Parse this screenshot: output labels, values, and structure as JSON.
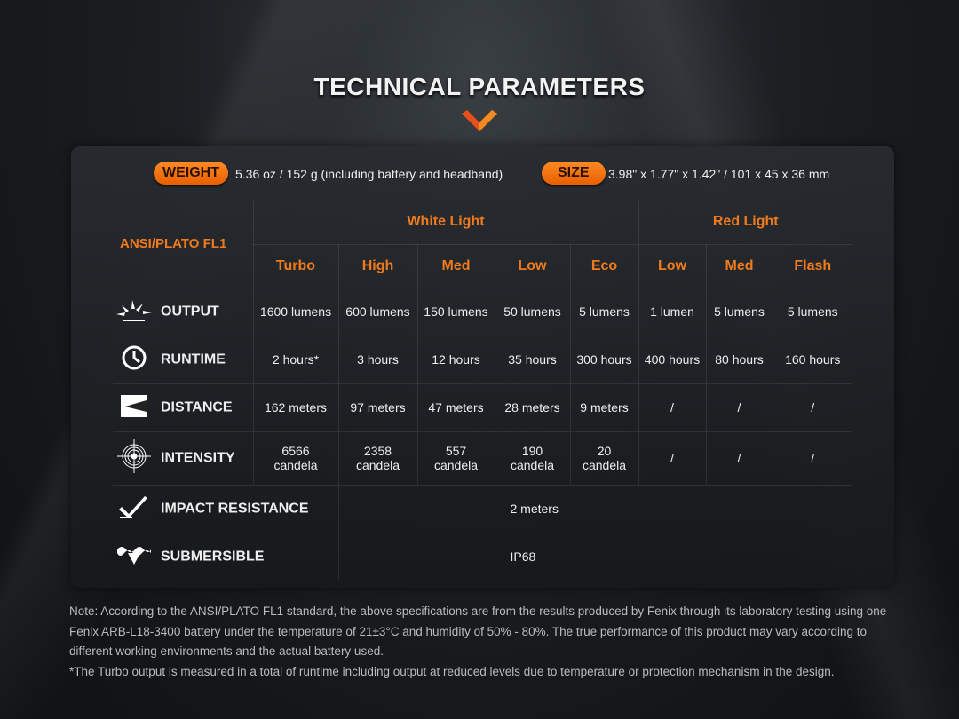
{
  "title": "TECHNICAL PARAMETERS",
  "colors": {
    "accent": "#f07a1c",
    "pill": "#ff7a14"
  },
  "weight": {
    "label": "WEIGHT",
    "value": "5.36 oz / 152 g (including battery and headband)"
  },
  "size": {
    "label": "SIZE",
    "value": "3.98\" x 1.77\" x 1.42\" / 101 x 45 x 36 mm"
  },
  "table": {
    "standard": "ANSI/PLATO FL1",
    "groups": [
      "White Light",
      "Red Light"
    ],
    "modes": [
      "Turbo",
      "High",
      "Med",
      "Low",
      "Eco",
      "Low",
      "Med",
      "Flash"
    ],
    "rows": [
      {
        "icon": "sun-burst-icon",
        "label": "OUTPUT",
        "values": [
          "1600 lumens",
          "600 lumens",
          "150 lumens",
          "50 lumens",
          "5 lumens",
          "1 lumen",
          "5 lumens",
          "5 lumens"
        ]
      },
      {
        "icon": "clock-icon",
        "label": "RUNTIME",
        "values": [
          "2 hours*",
          "3 hours",
          "12 hours",
          "35 hours",
          "300 hours",
          "400 hours",
          "80 hours",
          "160 hours"
        ]
      },
      {
        "icon": "beam-distance-icon",
        "label": "DISTANCE",
        "values": [
          "162 meters",
          "97 meters",
          "47 meters",
          "28 meters",
          "9 meters",
          "/",
          "/",
          "/"
        ]
      },
      {
        "icon": "target-icon",
        "label": "INTENSITY",
        "values": [
          "6566\ncandela",
          "2358\ncandela",
          "557\ncandela",
          "190\ncandela",
          "20\ncandela",
          "/",
          "/",
          "/"
        ]
      },
      {
        "icon": "impact-icon",
        "label": "IMPACT RESISTANCE",
        "value": "2 meters"
      },
      {
        "icon": "water-drop-icon",
        "label": "SUBMERSIBLE",
        "value": "IP68"
      }
    ]
  },
  "notes": [
    "Note: According to the ANSI/PLATO FL1 standard, the above specifications are from the results produced by Fenix through its laboratory testing using one Fenix ARB-L18-3400 battery under the temperature of 21±3°C and humidity of 50% - 80%. The true performance of this product may vary according to different working environments and the actual battery used.",
    "*The Turbo output is measured in a total of runtime including output at reduced levels due to temperature or protection mechanism in the design."
  ]
}
